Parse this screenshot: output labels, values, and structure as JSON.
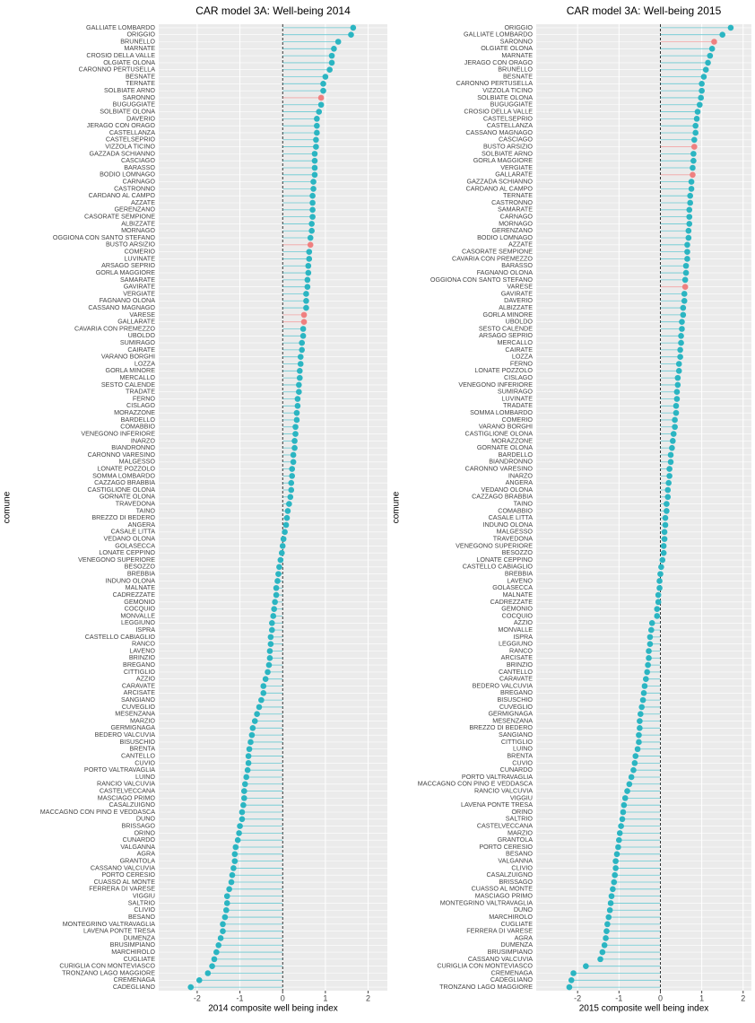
{
  "chart_data": [
    {
      "type": "dot",
      "title": "CAR model 3A: Well-being 2014",
      "xlabel": "2014 composite well being index",
      "ylabel": "comune",
      "categories": [
        "GALLIATE LOMBARDO",
        "ORIGGIO",
        "BRUNELLO",
        "MARNATE",
        "CROSIO DELLA VALLE",
        "OLGIATE OLONA",
        "CARONNO PERTUSELLA",
        "BESNATE",
        "TERNATE",
        "SOLBIATE ARNO",
        "SARONNO",
        "BUGUGGIATE",
        "SOLBIATE OLONA",
        "DAVERIO",
        "JERAGO CON ORAGO",
        "CASTELLANZA",
        "CASTELSEPRIO",
        "VIZZOLA TICINO",
        "GAZZADA SCHIANNO",
        "CASCIAGO",
        "BARASSO",
        "BODIO LOMNAGO",
        "CARNAGO",
        "CASTRONNO",
        "CARDANO AL CAMPO",
        "AZZATE",
        "GERENZANO",
        "CASORATE SEMPIONE",
        "ALBIZZATE",
        "MORNAGO",
        "OGGIONA CON SANTO STEFANO",
        "BUSTO ARSIZIO",
        "COMERIO",
        "LUVINATE",
        "ARSAGO SEPRIO",
        "GORLA MAGGIORE",
        "SAMARATE",
        "GAVIRATE",
        "VERGIATE",
        "FAGNANO OLONA",
        "CASSANO MAGNAGO",
        "VARESE",
        "GALLARATE",
        "CAVARIA CON PREMEZZO",
        "UBOLDO",
        "SUMIRAGO",
        "CAIRATE",
        "VARANO BORGHI",
        "LOZZA",
        "GORLA MINORE",
        "MERCALLO",
        "SESTO CALENDE",
        "TRADATE",
        "FERNO",
        "CISLAGO",
        "MORAZZONE",
        "BARDELLO",
        "COMABBIO",
        "VENEGONO INFERIORE",
        "INARZO",
        "BIANDRONNO",
        "CARONNO VARESINO",
        "MALGESSO",
        "LONATE POZZOLO",
        "SOMMA LOMBARDO",
        "CAZZAGO BRABBIA",
        "CASTIGLIONE OLONA",
        "GORNATE OLONA",
        "TRAVEDONA",
        "TAINO",
        "BREZZO DI BEDERO",
        "ANGERA",
        "CASALE LITTA",
        "VEDANO OLONA",
        "GOLASECCA",
        "LONATE CEPPINO",
        "VENEGONO SUPERIORE",
        "BESOZZO",
        "BREBBIA",
        "INDUNO OLONA",
        "MALNATE",
        "CADREZZATE",
        "GEMONIO",
        "COCQUIO",
        "MONVALLE",
        "LEGGIUNO",
        "ISPRA",
        "CASTELLO CABIAGLIO",
        "RANCO",
        "LAVENO",
        "BRINZIO",
        "BREGANO",
        "CITTIGLIO",
        "AZZIO",
        "CARAVATE",
        "ARCISATE",
        "SANGIANO",
        "CUVEGLIO",
        "MESENZANA",
        "MARZIO",
        "GERMIGNAGA",
        "BEDERO VALCUVIA",
        "BISUSCHIO",
        "BRENTA",
        "CANTELLO",
        "CUVIO",
        "PORTO VALTRAVAGLIA",
        "LUINO",
        "RANCIO VALCUVIA",
        "CASTELVECCANA",
        "MASCIAGO PRIMO",
        "CASALZUIGNO",
        "MACCAGNO CON PINO E VEDDASCA",
        "DUNO",
        "BRISSAGO",
        "ORINO",
        "CUNARDO",
        "VALGANNA",
        "AGRA",
        "GRANTOLA",
        "CASSANO VALCUVIA",
        "PORTO CERESIO",
        "CUASSO AL MONTE",
        "FERRERA DI VARESE",
        "VIGGIU",
        "SALTRIO",
        "CLIVIO",
        "BESANO",
        "MONTEGRINO VALTRAVAGLIA",
        "LAVENA PONTE TRESA",
        "DUMENZA",
        "BRUSIMPIANO",
        "MARCHIROLO",
        "CUGLIATE",
        "CURIGLIA CON MONTEVIASCO",
        "TRONZANO LAGO MAGGIORE",
        "CREMENAGA",
        "CADEGLIANO"
      ],
      "values": [
        1.65,
        1.6,
        1.3,
        1.2,
        1.15,
        1.15,
        1.1,
        1.0,
        0.95,
        0.95,
        0.9,
        0.9,
        0.85,
        0.8,
        0.8,
        0.8,
        0.78,
        0.78,
        0.75,
        0.75,
        0.75,
        0.75,
        0.72,
        0.72,
        0.7,
        0.7,
        0.7,
        0.7,
        0.68,
        0.68,
        0.65,
        0.65,
        0.62,
        0.62,
        0.6,
        0.6,
        0.58,
        0.58,
        0.55,
        0.55,
        0.55,
        0.5,
        0.5,
        0.48,
        0.48,
        0.45,
        0.45,
        0.42,
        0.42,
        0.4,
        0.4,
        0.38,
        0.38,
        0.35,
        0.35,
        0.33,
        0.33,
        0.3,
        0.3,
        0.28,
        0.28,
        0.25,
        0.25,
        0.22,
        0.22,
        0.2,
        0.2,
        0.18,
        0.15,
        0.12,
        0.1,
        0.08,
        0.05,
        0.02,
        0.0,
        -0.02,
        -0.05,
        -0.08,
        -0.1,
        -0.12,
        -0.15,
        -0.15,
        -0.18,
        -0.2,
        -0.22,
        -0.25,
        -0.25,
        -0.28,
        -0.28,
        -0.3,
        -0.3,
        -0.32,
        -0.35,
        -0.4,
        -0.45,
        -0.45,
        -0.5,
        -0.55,
        -0.6,
        -0.65,
        -0.7,
        -0.72,
        -0.75,
        -0.78,
        -0.8,
        -0.8,
        -0.82,
        -0.85,
        -0.88,
        -0.9,
        -0.9,
        -0.92,
        -0.95,
        -0.95,
        -1.0,
        -1.02,
        -1.05,
        -1.1,
        -1.12,
        -1.12,
        -1.15,
        -1.18,
        -1.2,
        -1.25,
        -1.3,
        -1.3,
        -1.32,
        -1.35,
        -1.4,
        -1.4,
        -1.45,
        -1.5,
        -1.55,
        -1.6,
        -1.65,
        -1.75,
        -1.95,
        -2.15
      ],
      "point_color": "#2bb5c2",
      "highlight_color": "#ef8080",
      "highlighted": [
        10,
        31,
        41,
        42
      ],
      "xlim": [
        -2.9,
        2.45
      ],
      "xticks": [
        -2,
        -1,
        0,
        1,
        2
      ],
      "vline": 0,
      "grid": true
    },
    {
      "type": "dot",
      "title": "CAR model 3A: Well-being 2015",
      "xlabel": "2015 composite well being index",
      "ylabel": "comune",
      "categories": [
        "ORIGGIO",
        "GALLIATE LOMBARDO",
        "SARONNO",
        "OLGIATE OLONA",
        "MARNATE",
        "JERAGO CON ORAGO",
        "BRUNELLO",
        "BESNATE",
        "CARONNO PERTUSELLA",
        "VIZZOLA TICINO",
        "SOLBIATE OLONA",
        "BUGUGGIATE",
        "CROSIO DELLA VALLE",
        "CASTELSEPRIO",
        "CASTELLANZA",
        "CASSANO MAGNAGO",
        "CASCIAGO",
        "BUSTO ARSIZIO",
        "SOLBIATE ARNO",
        "GORLA MAGGIORE",
        "VERGIATE",
        "GALLARATE",
        "GAZZADA SCHIANNO",
        "CARDANO AL CAMPO",
        "TERNATE",
        "CASTRONNO",
        "SAMARATE",
        "CARNAGO",
        "MORNAGO",
        "GERENZANO",
        "BODIO LOMNAGO",
        "AZZATE",
        "CASORATE SEMPIONE",
        "CAVARIA CON PREMEZZO",
        "BARASSO",
        "FAGNANO OLONA",
        "OGGIONA CON SANTO STEFANO",
        "VARESE",
        "GAVIRATE",
        "DAVERIO",
        "ALBIZZATE",
        "GORLA MINORE",
        "UBOLDO",
        "SESTO CALENDE",
        "ARSAGO SEPRIO",
        "MERCALLO",
        "CAIRATE",
        "LOZZA",
        "FERNO",
        "LONATE POZZOLO",
        "CISLAGO",
        "VENEGONO INFERIORE",
        "SUMIRAGO",
        "LUVINATE",
        "TRADATE",
        "SOMMA LOMBARDO",
        "COMERIO",
        "VARANO BORGHI",
        "CASTIGLIONE OLONA",
        "MORAZZONE",
        "GORNATE OLONA",
        "BARDELLO",
        "BIANDRONNO",
        "CARONNO VARESINO",
        "INARZO",
        "ANGERA",
        "VEDANO OLONA",
        "CAZZAGO BRABBIA",
        "TAINO",
        "COMABBIO",
        "CASALE LITTA",
        "INDUNO OLONA",
        "MALGESSO",
        "TRAVEDONA",
        "VENEGONO SUPERIORE",
        "BESOZZO",
        "LONATE CEPPINO",
        "CASTELLO CABIAGLIO",
        "BREBBIA",
        "LAVENO",
        "GOLASECCA",
        "MALNATE",
        "CADREZZATE",
        "GEMONIO",
        "COCQUIO",
        "AZZIO",
        "MONVALLE",
        "ISPRA",
        "LEGGIUNO",
        "RANCO",
        "ARCISATE",
        "BRINZIO",
        "CANTELLO",
        "CARAVATE",
        "BEDERO VALCUVIA",
        "BREGANO",
        "BISUSCHIO",
        "CUVEGLIO",
        "GERMIGNAGA",
        "MESENZANA",
        "BREZZO DI BEDERO",
        "SANGIANO",
        "CITTIGLIO",
        "LUINO",
        "BRENTA",
        "CUVIO",
        "CUNARDO",
        "PORTO VALTRAVAGLIA",
        "MACCAGNO CON PINO E VEDDASCA",
        "RANCIO VALCUVIA",
        "VIGGIU",
        "LAVENA PONTE TRESA",
        "ORINO",
        "SALTRIO",
        "CASTELVECCANA",
        "MARZIO",
        "GRANTOLA",
        "PORTO CERESIO",
        "BESANO",
        "VALGANNA",
        "CLIVIO",
        "CASALZUIGNO",
        "BRISSAGO",
        "CUASSO AL MONTE",
        "MASCIAGO PRIMO",
        "MONTEGRINO VALTRAVAGLIA",
        "DUNO",
        "MARCHIROLO",
        "CUGLIATE",
        "FERRERA DI VARESE",
        "AGRA",
        "DUMENZA",
        "BRUSIMPIANO",
        "CASSANO VALCUVIA",
        "CURIGLIA CON MONTEVIASCO",
        "CREMENAGA",
        "CADEGLIANO",
        "TRONZANO LAGO MAGGIORE"
      ],
      "values": [
        1.7,
        1.5,
        1.3,
        1.25,
        1.2,
        1.15,
        1.1,
        1.05,
        1.0,
        1.0,
        0.98,
        0.95,
        0.9,
        0.88,
        0.85,
        0.85,
        0.82,
        0.82,
        0.8,
        0.8,
        0.78,
        0.78,
        0.75,
        0.75,
        0.72,
        0.72,
        0.7,
        0.7,
        0.7,
        0.68,
        0.68,
        0.65,
        0.65,
        0.65,
        0.62,
        0.62,
        0.6,
        0.6,
        0.58,
        0.58,
        0.55,
        0.55,
        0.52,
        0.52,
        0.5,
        0.5,
        0.48,
        0.48,
        0.45,
        0.45,
        0.42,
        0.42,
        0.4,
        0.4,
        0.38,
        0.38,
        0.35,
        0.35,
        0.32,
        0.3,
        0.28,
        0.25,
        0.25,
        0.22,
        0.22,
        0.2,
        0.18,
        0.18,
        0.15,
        0.15,
        0.12,
        0.12,
        0.1,
        0.1,
        0.08,
        0.08,
        0.05,
        0.02,
        0.0,
        -0.02,
        -0.02,
        -0.05,
        -0.05,
        -0.08,
        -0.08,
        -0.2,
        -0.22,
        -0.25,
        -0.25,
        -0.28,
        -0.28,
        -0.3,
        -0.32,
        -0.35,
        -0.38,
        -0.4,
        -0.42,
        -0.45,
        -0.48,
        -0.5,
        -0.5,
        -0.52,
        -0.52,
        -0.55,
        -0.6,
        -0.62,
        -0.65,
        -0.7,
        -0.75,
        -0.8,
        -0.85,
        -0.88,
        -0.9,
        -0.92,
        -0.95,
        -0.98,
        -1.0,
        -1.02,
        -1.05,
        -1.08,
        -1.08,
        -1.1,
        -1.12,
        -1.15,
        -1.18,
        -1.2,
        -1.22,
        -1.25,
        -1.28,
        -1.3,
        -1.32,
        -1.35,
        -1.4,
        -1.45,
        -1.8,
        -2.1,
        -2.15,
        -2.2
      ],
      "point_color": "#2bb5c2",
      "highlight_color": "#ef8080",
      "highlighted": [
        2,
        17,
        21,
        37
      ],
      "xlim": [
        -3.0,
        2.2
      ],
      "xticks": [
        -2,
        -1,
        0,
        1,
        2
      ],
      "vline": 0,
      "grid": true
    }
  ]
}
